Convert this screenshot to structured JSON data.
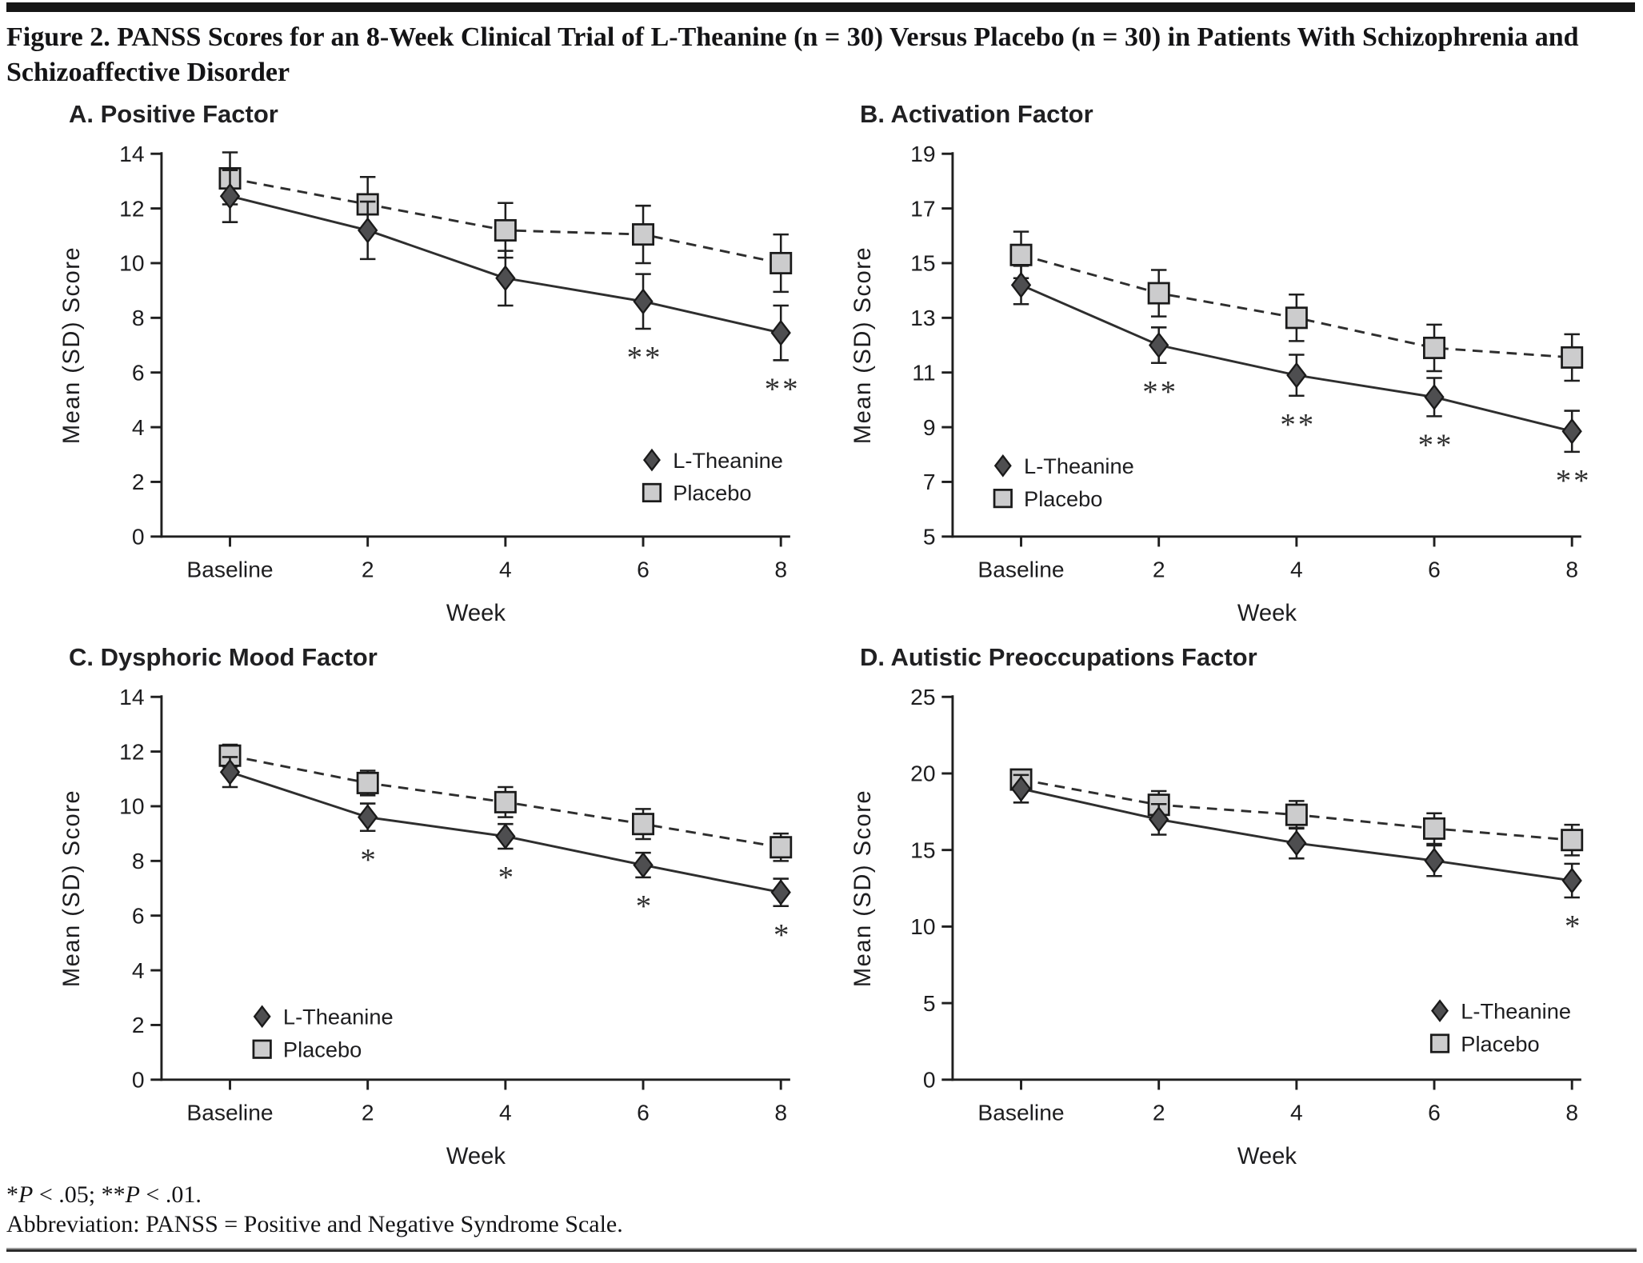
{
  "figure": {
    "title": "Figure 2. PANSS Scores for an 8-Week Clinical Trial of L-Theanine (n = 30) Versus Placebo (n = 30) in Patients With Schizophrenia and Schizoaffective Disorder",
    "footnote_significance_parts": [
      "*",
      "P",
      " < .05; ",
      "**",
      "P",
      " < .01."
    ],
    "footnote_abbreviation": "Abbreviation: PANSS = Positive and Negative Syndrome Scale."
  },
  "style": {
    "text": "#1d1d1f",
    "axis": "#1f1f1f",
    "line": "#2e2e2e",
    "diamond_fill": "#4e4e50",
    "square_fill": "#cccccd",
    "marker_stroke": "#1a1a1a",
    "top_bar": "#161616"
  },
  "chart_data": [
    {
      "panel": "A",
      "title": "A. Positive Factor",
      "type": "line",
      "x_categories": [
        "Baseline",
        "2",
        "4",
        "6",
        "8"
      ],
      "xlabel": "Week",
      "ylabel": "Mean (SD) Score",
      "ylim": [
        0,
        14
      ],
      "ytick_step": 2,
      "grid": false,
      "legend_position": {
        "fx": 0.78,
        "fy": 0.8
      },
      "series": [
        {
          "name": "L-Theanine",
          "marker": "diamond",
          "line": "solid",
          "values": [
            12.45,
            11.2,
            9.45,
            8.6,
            7.45
          ],
          "sd": [
            0.95,
            1.05,
            1.0,
            1.0,
            1.0
          ],
          "significance": [
            "",
            "",
            "",
            "**",
            "**"
          ]
        },
        {
          "name": "Placebo",
          "marker": "square",
          "line": "dashed",
          "values": [
            13.1,
            12.15,
            11.2,
            11.05,
            10.0
          ],
          "sd": [
            0.95,
            1.0,
            1.0,
            1.05,
            1.05
          ],
          "significance": [
            "",
            "",
            "",
            "",
            ""
          ]
        }
      ]
    },
    {
      "panel": "B",
      "title": "B. Activation Factor",
      "type": "line",
      "x_categories": [
        "Baseline",
        "2",
        "4",
        "6",
        "8"
      ],
      "xlabel": "Week",
      "ylabel": "Mean (SD) Score",
      "ylim": [
        5,
        19
      ],
      "ytick_step": 2,
      "grid": false,
      "legend_position": {
        "fx": 0.08,
        "fy": 0.815
      },
      "series": [
        {
          "name": "L-Theanine",
          "marker": "diamond",
          "line": "solid",
          "values": [
            14.2,
            12.0,
            10.9,
            10.1,
            8.85
          ],
          "sd": [
            0.7,
            0.65,
            0.75,
            0.7,
            0.75
          ],
          "significance": [
            "",
            "**",
            "**",
            "**",
            "**"
          ]
        },
        {
          "name": "Placebo",
          "marker": "square",
          "line": "dashed",
          "values": [
            15.3,
            13.9,
            13.0,
            11.9,
            11.55
          ],
          "sd": [
            0.85,
            0.85,
            0.85,
            0.85,
            0.85
          ],
          "significance": [
            "",
            "",
            "",
            "",
            ""
          ]
        }
      ]
    },
    {
      "panel": "C",
      "title": "C. Dysphoric Mood Factor",
      "type": "line",
      "x_categories": [
        "Baseline",
        "2",
        "4",
        "6",
        "8"
      ],
      "xlabel": "Week",
      "ylabel": "Mean (SD) Score",
      "ylim": [
        0,
        14
      ],
      "ytick_step": 2,
      "grid": false,
      "legend_position": {
        "fx": 0.16,
        "fy": 0.835
      },
      "series": [
        {
          "name": "L-Theanine",
          "marker": "diamond",
          "line": "solid",
          "values": [
            11.25,
            9.6,
            8.9,
            7.85,
            6.85
          ],
          "sd": [
            0.55,
            0.5,
            0.45,
            0.45,
            0.5
          ],
          "significance": [
            "",
            "*",
            "*",
            "*",
            "*"
          ]
        },
        {
          "name": "Placebo",
          "marker": "square",
          "line": "dashed",
          "values": [
            11.85,
            10.85,
            10.15,
            9.35,
            8.5
          ],
          "sd": [
            0.4,
            0.45,
            0.55,
            0.55,
            0.5
          ],
          "significance": [
            "",
            "",
            "",
            "",
            ""
          ]
        }
      ]
    },
    {
      "panel": "D",
      "title": "D. Autistic Preoccupations Factor",
      "type": "line",
      "x_categories": [
        "Baseline",
        "2",
        "4",
        "6",
        "8"
      ],
      "xlabel": "Week",
      "ylabel": "Mean (SD) Score",
      "ylim": [
        0,
        25
      ],
      "ytick_step": 5,
      "grid": false,
      "legend_position": {
        "fx": 0.775,
        "fy": 0.82
      },
      "series": [
        {
          "name": "L-Theanine",
          "marker": "diamond",
          "line": "solid",
          "values": [
            19.0,
            17.0,
            15.45,
            14.3,
            13.0
          ],
          "sd": [
            0.9,
            1.0,
            1.0,
            1.0,
            1.1
          ],
          "significance": [
            "",
            "",
            "",
            "",
            "*"
          ]
        },
        {
          "name": "Placebo",
          "marker": "square",
          "line": "dashed",
          "values": [
            19.6,
            17.95,
            17.3,
            16.4,
            15.65
          ],
          "sd": [
            0.6,
            0.9,
            0.9,
            1.0,
            1.0
          ],
          "significance": [
            "",
            "",
            "",
            "",
            ""
          ]
        }
      ]
    }
  ]
}
